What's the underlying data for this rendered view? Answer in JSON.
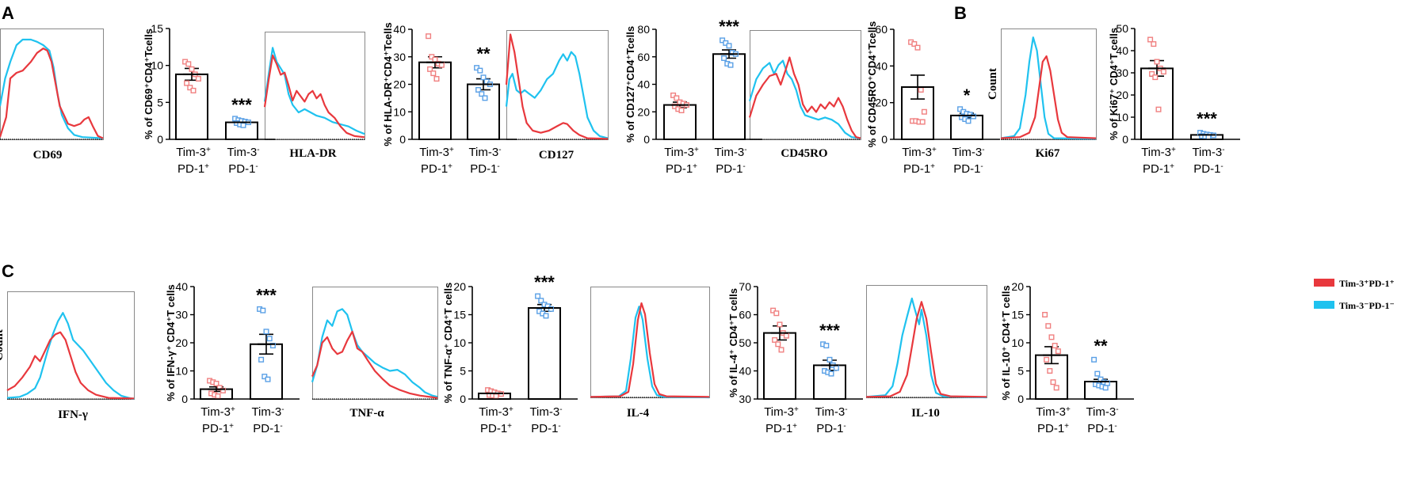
{
  "panel_letters": [
    "A",
    "B",
    "C"
  ],
  "colors": {
    "tim3pos": "#e8383d",
    "tim3neg": "#1fc2ef",
    "pos_marker": "#f08080",
    "neg_marker": "#5aa0e6",
    "axis": "#000000"
  },
  "legend": {
    "entries": [
      "Tim-3⁺PD-1⁺",
      "Tim-3⁻PD-1⁻"
    ]
  },
  "count_label": "Count",
  "group_labels": {
    "a1": "Tim-3",
    "a1_sup": "+",
    "a2": "PD-1",
    "a2_sup": "+",
    "b1": "Tim-3",
    "b1_sup": "-",
    "b2": "PD-1",
    "b2_sup": "-"
  },
  "histograms": [
    {
      "marker": "CD69"
    },
    {
      "marker": "HLA-DR"
    },
    {
      "marker": "CD127"
    },
    {
      "marker": "CD45RO"
    },
    {
      "marker": "Ki67"
    },
    {
      "marker": "IFN-γ"
    },
    {
      "marker": "TNF-α"
    },
    {
      "marker": "IL-4"
    },
    {
      "marker": "IL-10"
    }
  ],
  "chart_data": [
    {
      "type": "bar",
      "ylabel": "% of CD69⁺CD4⁺Tcells",
      "categories": [
        "Tim-3⁺PD-1⁺",
        "Tim-3⁻PD-1⁻"
      ],
      "values": [
        8.8,
        2.3
      ],
      "sem": [
        0.8,
        0.2
      ],
      "ylim": [
        0,
        15
      ],
      "ticks": [
        0,
        5,
        10,
        15
      ],
      "significance": "***",
      "points": [
        [
          10.5,
          10.2,
          9.5,
          8.8,
          8.2,
          7.6,
          7.0,
          6.6
        ],
        [
          2.8,
          2.6,
          2.5,
          2.4,
          2.3,
          2.2,
          2.0,
          1.9
        ]
      ]
    },
    {
      "type": "bar",
      "ylabel": "% of HLA-DR⁺CD4⁺Tcells",
      "categories": [
        "Tim-3⁺PD-1⁺",
        "Tim-3⁻PD-1⁻"
      ],
      "values": [
        28,
        20
      ],
      "sem": [
        2,
        2
      ],
      "ylim": [
        0,
        40
      ],
      "ticks": [
        0,
        10,
        20,
        30,
        40
      ],
      "significance": "**",
      "points": [
        [
          37.5,
          30,
          29,
          27.5,
          27,
          25.5,
          24,
          22
        ],
        [
          26,
          25,
          22.5,
          21,
          20,
          18,
          16.5,
          15
        ]
      ]
    },
    {
      "type": "bar",
      "ylabel": "% of CD127⁺CD4⁺Tcells",
      "categories": [
        "Tim-3⁺PD-1⁺",
        "Tim-3⁻PD-1⁻"
      ],
      "values": [
        25,
        62
      ],
      "sem": [
        2,
        3
      ],
      "ylim": [
        0,
        80
      ],
      "ticks": [
        0,
        20,
        40,
        60,
        80
      ],
      "significance": "***",
      "points": [
        [
          32,
          30,
          27,
          26,
          25,
          24,
          22,
          21
        ],
        [
          72,
          70,
          68,
          63,
          62,
          59,
          55,
          54
        ]
      ]
    },
    {
      "type": "bar",
      "ylabel": "% of CD45RO⁺CD4⁺Tcells",
      "categories": [
        "Tim-3⁺PD-1⁺",
        "Tim-3⁻PD-1⁻"
      ],
      "values": [
        28.5,
        13
      ],
      "sem": [
        6.5,
        1.2
      ],
      "ylim": [
        0,
        60
      ],
      "ticks": [
        0,
        20,
        40,
        60
      ],
      "significance": "*",
      "points": [
        [
          53,
          52,
          50,
          27,
          15,
          10,
          10,
          9.5,
          9.5
        ],
        [
          16.5,
          15,
          14,
          13.5,
          12.5,
          12,
          11,
          10
        ]
      ]
    },
    {
      "type": "bar",
      "ylabel": "% of Ki67⁺ CD4⁺T cells",
      "categories": [
        "Tim-3⁺PD-1⁺",
        "Tim-3⁻PD-1⁻"
      ],
      "values": [
        32,
        2
      ],
      "sem": [
        3.5,
        0.6
      ],
      "ylim": [
        0,
        50
      ],
      "ticks": [
        0,
        10,
        20,
        30,
        40,
        50
      ],
      "significance": "***",
      "points": [
        [
          45,
          43,
          35,
          32,
          30.5,
          29.5,
          28,
          13.5
        ],
        [
          3,
          2.5,
          2.2,
          2,
          1.8,
          1.5,
          1.3,
          1
        ]
      ]
    },
    {
      "type": "bar",
      "ylabel": "% of IFN-γ⁺ CD4⁺T cells",
      "categories": [
        "Tim-3⁺PD-1⁺",
        "Tim-3⁻PD-1⁻"
      ],
      "values": [
        3.5,
        19.5
      ],
      "sem": [
        0.8,
        3.5
      ],
      "ylim": [
        0,
        40
      ],
      "ticks": [
        0,
        10,
        20,
        30,
        40
      ],
      "significance": "***",
      "points": [
        [
          6.5,
          6,
          5.5,
          4,
          3,
          2,
          1.5,
          1
        ],
        [
          32,
          31.5,
          24,
          21.5,
          19,
          14,
          8,
          7
        ]
      ]
    },
    {
      "type": "bar",
      "ylabel": "% of TNF-α⁺ CD4⁺T cells",
      "categories": [
        "Tim-3⁺PD-1⁺",
        "Tim-3⁻PD-1⁻"
      ],
      "values": [
        1.0,
        16.2
      ],
      "sem": [
        0.3,
        0.6
      ],
      "ylim": [
        0,
        20
      ],
      "ticks": [
        0,
        5,
        10,
        15,
        20
      ],
      "significance": "***",
      "points": [
        [
          1.6,
          1.4,
          1.2,
          1.0,
          0.9,
          0.7,
          0.6,
          0.5
        ],
        [
          18.3,
          17.5,
          16.8,
          16.5,
          16,
          15.6,
          15.2,
          14.8
        ]
      ]
    },
    {
      "type": "bar",
      "ylabel": "% of IL-4⁺ CD4⁺T cells",
      "categories": [
        "Tim-3⁺PD-1⁺",
        "Tim-3⁻PD-1⁻"
      ],
      "values": [
        53.5,
        42
      ],
      "sem": [
        2.5,
        1.8
      ],
      "ylim": [
        30,
        70
      ],
      "ticks": [
        30,
        40,
        50,
        60,
        70
      ],
      "significance": "***",
      "points": [
        [
          61.5,
          60.5,
          56.5,
          53.5,
          52.5,
          51,
          49.5,
          47.5
        ],
        [
          49.5,
          49,
          44,
          42,
          41,
          40,
          39.5,
          39
        ]
      ]
    },
    {
      "type": "bar",
      "ylabel": "% of IL-10⁺ CD4⁺T cells",
      "categories": [
        "Tim-3⁺PD-1⁺",
        "Tim-3⁻PD-1⁻"
      ],
      "values": [
        7.8,
        3.1
      ],
      "sem": [
        1.5,
        0.4
      ],
      "ylim": [
        0,
        20
      ],
      "ticks": [
        0,
        5,
        10,
        15,
        20
      ],
      "significance": "**",
      "points": [
        [
          15,
          13,
          11,
          9.5,
          8.5,
          7,
          5,
          3,
          2
        ],
        [
          7,
          4.5,
          3.5,
          3,
          2.8,
          2.6,
          2.4,
          2.2,
          2
        ]
      ]
    }
  ]
}
